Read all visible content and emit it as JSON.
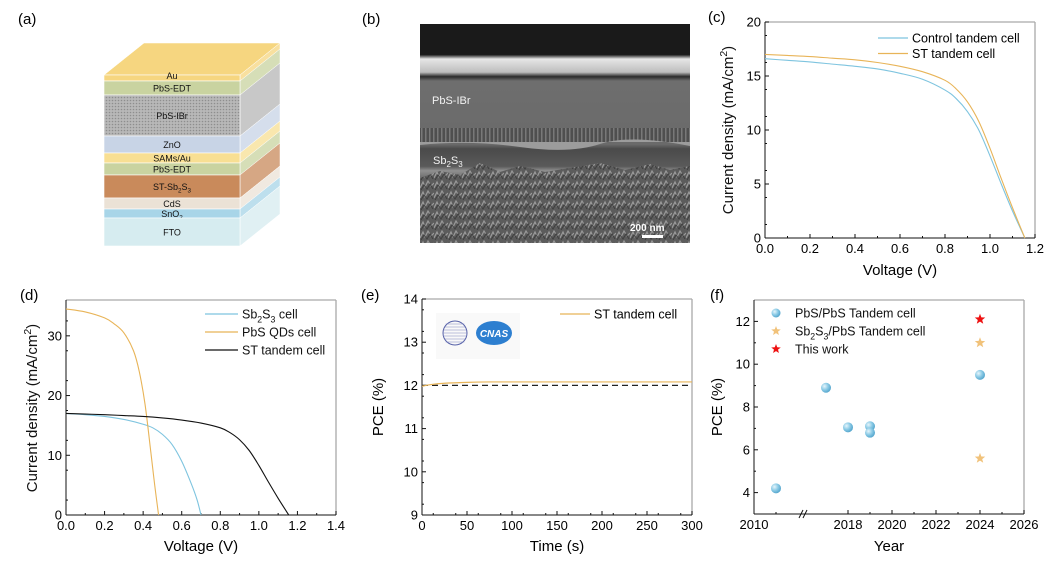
{
  "panel_labels": [
    "(a)",
    "(b)",
    "(c)",
    "(d)",
    "(e)",
    "(f)"
  ],
  "colors": {
    "blue": "#7ec4df",
    "orange": "#e8b458",
    "black": "#111111",
    "red": "#ee1111",
    "star_orange": "#f1c27a"
  },
  "device_stack": {
    "layers": [
      {
        "name": "Au",
        "color": "#f6d680"
      },
      {
        "name": "PbS-EDT",
        "color": "#c9d3a0"
      },
      {
        "name": "PbS-IBr",
        "color": "#b6b6b6"
      },
      {
        "name": "ZnO",
        "color": "#c8d4e6"
      },
      {
        "name": "SAMs/Au",
        "color": "#f8df93"
      },
      {
        "name": "PbS-EDT",
        "color": "#c9d3a0"
      },
      {
        "name": "ST-Sb2S3",
        "color": "#c98a5b"
      },
      {
        "name": "CdS",
        "color": "#ebe2d6"
      },
      {
        "name": "SnO2",
        "color": "#a8d5e8"
      },
      {
        "name": "FTO",
        "color": "#d6ecf0"
      }
    ]
  },
  "sem": {
    "labels": [
      "PbS-IBr",
      "Sb2S3"
    ],
    "scale_bar": "200 nm"
  },
  "logos": [
    "CNAS"
  ],
  "chart_data": [
    {
      "id": "c",
      "type": "line",
      "xlabel": "Voltage (V)",
      "ylabel": "Current density (mA/cm2)",
      "xlim": [
        0,
        1.2
      ],
      "ylim": [
        0,
        20
      ],
      "xticks": [
        "0.0",
        "0.2",
        "0.4",
        "0.6",
        "0.8",
        "1.0",
        "1.2"
      ],
      "yticks": [
        "0",
        "5",
        "10",
        "15",
        "20"
      ],
      "legend": "top-right",
      "series": [
        {
          "name": "Control tandem cell",
          "color": "#7ec4df",
          "x": [
            0,
            0.1,
            0.2,
            0.3,
            0.4,
            0.5,
            0.6,
            0.7,
            0.8,
            0.85,
            0.9,
            0.95,
            1.0,
            1.05,
            1.1,
            1.155
          ],
          "y": [
            16.6,
            16.45,
            16.3,
            16.1,
            15.9,
            15.65,
            15.25,
            14.7,
            13.7,
            12.9,
            11.7,
            10.0,
            7.6,
            5.0,
            2.5,
            0
          ]
        },
        {
          "name": "ST tandem cell",
          "color": "#e8b458",
          "x": [
            0,
            0.1,
            0.2,
            0.3,
            0.4,
            0.5,
            0.6,
            0.7,
            0.8,
            0.85,
            0.9,
            0.95,
            1.0,
            1.05,
            1.1,
            1.155
          ],
          "y": [
            17.0,
            16.9,
            16.8,
            16.65,
            16.5,
            16.25,
            15.9,
            15.4,
            14.6,
            13.8,
            12.6,
            10.8,
            8.3,
            5.5,
            2.8,
            0
          ]
        }
      ]
    },
    {
      "id": "d",
      "type": "line",
      "xlabel": "Voltage (V)",
      "ylabel": "Current density (mA/cm2)",
      "xlim": [
        0,
        1.4
      ],
      "ylim": [
        0,
        36
      ],
      "xticks": [
        "0.0",
        "0.2",
        "0.4",
        "0.6",
        "0.8",
        "1.0",
        "1.2",
        "1.4"
      ],
      "yticks": [
        "0",
        "10",
        "20",
        "30"
      ],
      "legend": "top-right",
      "series": [
        {
          "name": "Sb2S3 cell",
          "color": "#7ec4df",
          "x": [
            0,
            0.1,
            0.2,
            0.3,
            0.4,
            0.45,
            0.5,
            0.55,
            0.6,
            0.65,
            0.68,
            0.7
          ],
          "y": [
            17.0,
            16.8,
            16.5,
            16.0,
            15.2,
            14.6,
            13.5,
            11.8,
            9.0,
            5.2,
            2.5,
            0
          ]
        },
        {
          "name": "PbS QDs cell",
          "color": "#e8b458",
          "x": [
            0,
            0.1,
            0.2,
            0.25,
            0.3,
            0.35,
            0.38,
            0.41,
            0.44,
            0.46,
            0.48
          ],
          "y": [
            34.5,
            34.0,
            33.0,
            32.0,
            30.5,
            27.5,
            24.0,
            18.5,
            10.5,
            5.0,
            0
          ]
        },
        {
          "name": "ST tandem cell",
          "color": "#111111",
          "x": [
            0,
            0.1,
            0.2,
            0.3,
            0.4,
            0.5,
            0.6,
            0.7,
            0.8,
            0.85,
            0.9,
            0.95,
            1.0,
            1.05,
            1.1,
            1.155
          ],
          "y": [
            17.0,
            16.9,
            16.8,
            16.65,
            16.5,
            16.25,
            15.9,
            15.4,
            14.6,
            13.8,
            12.6,
            10.8,
            8.3,
            5.5,
            2.8,
            0
          ]
        }
      ]
    },
    {
      "id": "e",
      "type": "line",
      "xlabel": "Time (s)",
      "ylabel": "PCE (%)",
      "xlim": [
        0,
        300
      ],
      "ylim": [
        9,
        14
      ],
      "xticks": [
        "0",
        "50",
        "100",
        "150",
        "200",
        "250",
        "300"
      ],
      "yticks": [
        "9",
        "10",
        "11",
        "12",
        "13",
        "14"
      ],
      "legend": "top-right",
      "reference_line": 12.0,
      "series": [
        {
          "name": "ST tandem cell",
          "color": "#e8b458",
          "x": [
            0,
            10,
            25,
            50,
            75,
            100,
            150,
            200,
            250,
            300
          ],
          "y": [
            11.98,
            12.02,
            12.05,
            12.07,
            12.08,
            12.08,
            12.08,
            12.08,
            12.08,
            12.08
          ]
        }
      ]
    },
    {
      "id": "f",
      "type": "scatter",
      "xlabel": "Year",
      "ylabel": "PCE (%)",
      "xlim": [
        2010,
        2026
      ],
      "ylim": [
        3,
        13
      ],
      "xticks": [
        "2010",
        "2018",
        "2020",
        "2022",
        "2024",
        "2026"
      ],
      "yticks": [
        "4",
        "6",
        "8",
        "10",
        "12"
      ],
      "axis_break": true,
      "legend": "top-left",
      "series": [
        {
          "name": "PbS/PbS Tandem cell",
          "marker": "circle",
          "color": "#7ec4df",
          "x": [
            2011,
            2017,
            2018,
            2019,
            2019,
            2024
          ],
          "y": [
            4.2,
            8.9,
            7.05,
            7.1,
            6.8,
            9.5
          ]
        },
        {
          "name": "Sb2S3/PbS Tandem cell",
          "marker": "star",
          "color": "#f1c27a",
          "x": [
            2024,
            2024
          ],
          "y": [
            11.0,
            5.6
          ]
        },
        {
          "name": "This work",
          "marker": "star",
          "color": "#ee1111",
          "x": [
            2024
          ],
          "y": [
            12.1
          ]
        }
      ]
    }
  ]
}
